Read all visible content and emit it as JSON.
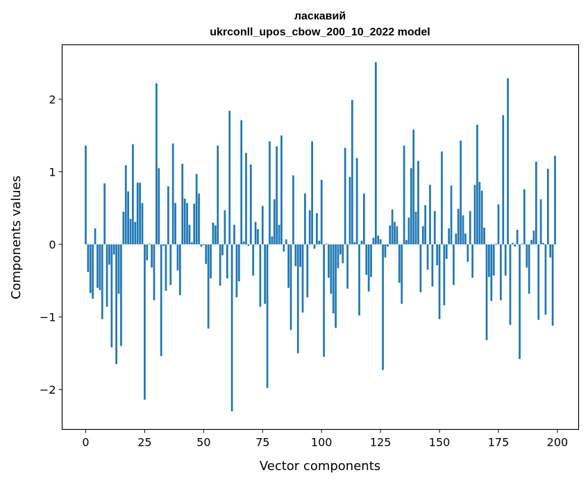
{
  "chart_data": {
    "type": "bar",
    "title": "ласкавий",
    "subtitle": "ukrconll_upos_cbow_200_10_2022 model",
    "xlabel": "Vector components",
    "ylabel": "Components values",
    "xlim": [
      -10,
      209
    ],
    "ylim": [
      -2.55,
      2.75
    ],
    "xticks": [
      0,
      25,
      50,
      75,
      100,
      125,
      150,
      175,
      200
    ],
    "yticks": [
      -2,
      -1,
      0,
      1,
      2
    ],
    "ytick_labels": [
      "−2",
      "−1",
      "0",
      "1",
      "2"
    ],
    "bar_color": "#1f77b4",
    "grid": false,
    "legend": "none",
    "values": [
      1.36,
      -0.38,
      -0.67,
      -0.75,
      0.22,
      -0.6,
      -0.63,
      -1.03,
      0.84,
      -0.86,
      -0.28,
      -1.42,
      -0.14,
      -1.65,
      -0.68,
      -1.4,
      0.45,
      1.09,
      0.73,
      0.35,
      1.38,
      0.31,
      0.85,
      0.85,
      0.57,
      -2.14,
      -0.22,
      0.01,
      -0.32,
      -0.77,
      2.22,
      1.05,
      -1.54,
      -0.02,
      -0.64,
      0.8,
      -0.56,
      1.39,
      0.57,
      -0.36,
      -0.7,
      1.11,
      0.63,
      0.57,
      0.27,
      0.03,
      0.56,
      0.97,
      0.7,
      -0.03,
      -0.01,
      -0.27,
      -1.16,
      -0.47,
      0.3,
      0.26,
      1.36,
      -0.57,
      -0.15,
      0.47,
      -0.47,
      1.84,
      -2.3,
      0.27,
      -0.73,
      -0.51,
      1.71,
      0.04,
      1.26,
      -0.02,
      1.1,
      -0.43,
      0.31,
      0.21,
      -0.86,
      0.53,
      -0.82,
      -1.98,
      1.42,
      0.11,
      0.62,
      1.35,
      0.27,
      1.5,
      -0.1,
      0.07,
      -0.6,
      -1.18,
      0.95,
      -0.3,
      -1.5,
      -0.31,
      -0.94,
      0.7,
      -0.73,
      0.47,
      1.42,
      -0.06,
      0.43,
      0.05,
      0.89,
      -1.55,
      0.01,
      -0.46,
      -0.68,
      -0.95,
      -1.15,
      -0.33,
      -0.14,
      -0.26,
      1.33,
      -0.61,
      0.93,
      1.99,
      0.03,
      1.19,
      -0.98,
      0.05,
      0.7,
      -0.42,
      -0.65,
      -0.45,
      0.09,
      2.51,
      0.12,
      0.07,
      -1.73,
      -0.18,
      -0.03,
      0.26,
      0.48,
      0.31,
      0.25,
      -0.53,
      -0.82,
      1.36,
      0.06,
      0.37,
      1.05,
      1.58,
      0.45,
      1.15,
      -0.66,
      0.25,
      0.54,
      -0.35,
      0.82,
      -0.58,
      0.46,
      -0.29,
      -1.03,
      1.28,
      -0.84,
      -0.2,
      0.22,
      0.81,
      -0.56,
      0.15,
      0.49,
      1.43,
      0.4,
      0.15,
      -0.24,
      0.46,
      -0.46,
      0.82,
      1.65,
      0.86,
      0.74,
      0.23,
      -1.32,
      -0.45,
      -0.78,
      -0.43,
      0.01,
      0.55,
      -0.77,
      1.78,
      -0.43,
      2.29,
      -1.11,
      0.02,
      -0.03,
      0.2,
      -1.58,
      0.01,
      0.76,
      -0.32,
      -0.68,
      0.06,
      0.19,
      1.14,
      -1.04,
      0.62,
      0.02,
      -0.97,
      1.04,
      -0.18,
      -1.12,
      1.22
    ]
  }
}
